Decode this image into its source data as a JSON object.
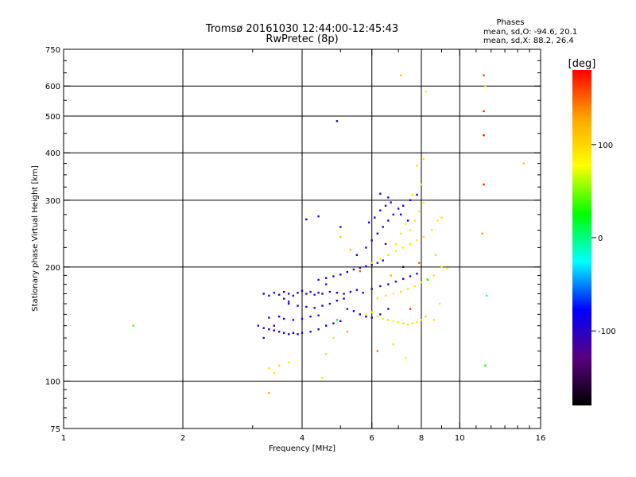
{
  "header": {
    "title_line1": "Tromsø 20161030 12:44:00-12:45:43",
    "title_line2": "RwPretec (8p)",
    "stats_title": "Phases",
    "stats_o": "mean, sd,O: -94.6, 20.1",
    "stats_x": "mean, sd,X:  88.2, 26.4"
  },
  "colorbar": {
    "label": "[deg]",
    "ticks": [
      {
        "label": "100",
        "value": 100
      },
      {
        "label": "0",
        "value": 0
      },
      {
        "label": "-100",
        "value": -100
      }
    ],
    "range": [
      -180,
      180
    ],
    "colors": [
      "#ff0000",
      "#ffa500",
      "#ffff00",
      "#00ff00",
      "#00ffff",
      "#0000ff",
      "#5a0080",
      "#000000"
    ]
  },
  "chart_data": {
    "type": "scatter",
    "xlabel": "Frequency [MHz]",
    "ylabel": "Stationary phase Virtual Height [km]",
    "x_scale": "log",
    "y_scale": "log",
    "xlim": [
      1,
      16
    ],
    "ylim": [
      75,
      750
    ],
    "x_ticks": [
      {
        "label": "1",
        "value": 1
      },
      {
        "label": "2",
        "value": 2
      },
      {
        "label": "4",
        "value": 4
      },
      {
        "label": "6",
        "value": 6
      },
      {
        "label": "8",
        "value": 8
      },
      {
        "label": "10",
        "value": 10
      },
      {
        "label": "16",
        "value": 16
      }
    ],
    "y_ticks": [
      {
        "label": "75",
        "value": 75
      },
      {
        "label": "100",
        "value": 100
      },
      {
        "label": "200",
        "value": 200
      },
      {
        "label": "300",
        "value": 300
      },
      {
        "label": "400",
        "value": 400
      },
      {
        "label": "500",
        "value": 500
      },
      {
        "label": "600",
        "value": 600
      },
      {
        "label": "750",
        "value": 750
      }
    ],
    "x_grid": [
      2,
      4,
      6,
      8,
      10
    ],
    "y_grid": [
      100,
      200,
      300,
      400,
      500,
      600
    ],
    "grid": true,
    "series": [
      {
        "points": [
          [
            3.2,
            170,
            -95
          ],
          [
            3.3,
            168,
            -100
          ],
          [
            3.4,
            171,
            -92
          ],
          [
            3.5,
            169,
            -98
          ],
          [
            3.6,
            172,
            -90
          ],
          [
            3.7,
            170,
            -96
          ],
          [
            3.8,
            168,
            -101
          ],
          [
            3.9,
            171,
            -94
          ],
          [
            4.0,
            173,
            -88
          ],
          [
            4.1,
            170,
            -97
          ],
          [
            4.2,
            172,
            -93
          ],
          [
            4.3,
            169,
            -99
          ],
          [
            4.4,
            171,
            -95
          ],
          [
            4.5,
            170,
            -91
          ],
          [
            4.7,
            172,
            -96
          ],
          [
            4.9,
            171,
            -94
          ],
          [
            5.1,
            170,
            -98
          ],
          [
            5.3,
            172,
            -92
          ],
          [
            5.5,
            174,
            -90
          ],
          [
            5.7,
            171,
            -95
          ],
          [
            3.1,
            140,
            -100
          ],
          [
            3.2,
            138,
            -96
          ],
          [
            3.3,
            137,
            -102
          ],
          [
            3.4,
            136,
            -94
          ],
          [
            3.5,
            135,
            -98
          ],
          [
            3.6,
            134,
            -99
          ],
          [
            3.7,
            133,
            -95
          ],
          [
            3.8,
            134,
            -97
          ],
          [
            3.9,
            133,
            -101
          ],
          [
            4.0,
            134,
            -93
          ],
          [
            4.2,
            135,
            -96
          ],
          [
            4.4,
            137,
            -98
          ],
          [
            4.6,
            140,
            -95
          ],
          [
            4.8,
            142,
            -97
          ],
          [
            5.0,
            144,
            -93
          ],
          [
            3.7,
            160,
            -96
          ],
          [
            3.9,
            158,
            -99
          ],
          [
            4.1,
            157,
            -93
          ],
          [
            4.3,
            156,
            -98
          ],
          [
            4.5,
            158,
            -95
          ],
          [
            4.7,
            160,
            -97
          ],
          [
            4.9,
            163,
            -94
          ],
          [
            5.1,
            165,
            -96
          ],
          [
            3.3,
            147,
            -98
          ],
          [
            3.5,
            148,
            -94
          ],
          [
            3.6,
            146,
            -99
          ],
          [
            3.8,
            145,
            -95
          ],
          [
            4.0,
            146,
            -97
          ],
          [
            4.2,
            148,
            -93
          ],
          [
            4.4,
            149,
            -100
          ],
          [
            4.4,
            185,
            -95
          ],
          [
            4.6,
            187,
            -98
          ],
          [
            4.8,
            189,
            -92
          ],
          [
            5.0,
            191,
            -96
          ],
          [
            5.2,
            194,
            -94
          ],
          [
            5.4,
            197,
            -99
          ],
          [
            5.6,
            199,
            -95
          ],
          [
            5.8,
            201,
            -93
          ],
          [
            6.0,
            203,
            -97
          ],
          [
            6.2,
            205,
            -94
          ],
          [
            6.4,
            208,
            -96
          ],
          [
            5.5,
            215,
            -96
          ],
          [
            5.8,
            225,
            -93
          ],
          [
            6.0,
            235,
            -98
          ],
          [
            6.2,
            245,
            -95
          ],
          [
            6.4,
            255,
            -97
          ],
          [
            6.6,
            265,
            -94
          ],
          [
            6.8,
            275,
            -99
          ],
          [
            7.0,
            285,
            -95
          ],
          [
            7.2,
            290,
            -97
          ],
          [
            7.5,
            300,
            -93
          ],
          [
            7.8,
            310,
            -96
          ],
          [
            5.9,
            262,
            -95
          ],
          [
            6.1,
            270,
            -98
          ],
          [
            6.3,
            282,
            -94
          ],
          [
            6.5,
            290,
            -97
          ],
          [
            6.7,
            296,
            -93
          ],
          [
            6.3,
            312,
            -96
          ],
          [
            6.6,
            305,
            -98
          ],
          [
            7.1,
            275,
            -95
          ],
          [
            7.4,
            265,
            -92
          ],
          [
            6.0,
            175,
            -94
          ],
          [
            6.3,
            178,
            -98
          ],
          [
            6.6,
            180,
            -95
          ],
          [
            6.9,
            183,
            -97
          ],
          [
            7.2,
            186,
            -93
          ],
          [
            7.5,
            189,
            -96
          ],
          [
            7.8,
            192,
            -99
          ],
          [
            5.2,
            155,
            -96
          ],
          [
            5.4,
            153,
            -93
          ],
          [
            5.6,
            150,
            -98
          ],
          [
            5.8,
            148,
            -95
          ],
          [
            6.0,
            147,
            -97
          ],
          [
            6.3,
            150,
            -94
          ],
          [
            6.6,
            155,
            -96
          ],
          [
            4.1,
            267,
            -95
          ],
          [
            5.0,
            255,
            -98
          ],
          [
            4.4,
            272,
            -96
          ],
          [
            3.4,
            140,
            -140
          ],
          [
            3.6,
            165,
            -130
          ],
          [
            4.6,
            180,
            -125
          ],
          [
            6.5,
            230,
            -135
          ],
          [
            7.2,
            200,
            -150
          ],
          [
            3.2,
            130,
            -110
          ],
          [
            3.7,
            162,
            -88
          ],
          [
            4.9,
            485,
            -88
          ]
        ]
      },
      {
        "points": [
          [
            5.8,
            150,
            90
          ],
          [
            6.0,
            152,
            85
          ],
          [
            6.2,
            148,
            95
          ],
          [
            6.4,
            146,
            88
          ],
          [
            6.6,
            145,
            92
          ],
          [
            6.8,
            144,
            86
          ],
          [
            7.0,
            143,
            90
          ],
          [
            7.2,
            142,
            94
          ],
          [
            7.4,
            141,
            88
          ],
          [
            7.6,
            142,
            92
          ],
          [
            7.8,
            143,
            86
          ],
          [
            8.0,
            145,
            90
          ],
          [
            8.2,
            148,
            95
          ],
          [
            6.2,
            165,
            88
          ],
          [
            6.5,
            168,
            92
          ],
          [
            6.8,
            170,
            86
          ],
          [
            7.1,
            172,
            94
          ],
          [
            7.4,
            175,
            90
          ],
          [
            7.7,
            178,
            87
          ],
          [
            8.0,
            182,
            92
          ],
          [
            8.3,
            186,
            88
          ],
          [
            8.6,
            190,
            95
          ],
          [
            6.9,
            230,
            90
          ],
          [
            7.1,
            245,
            86
          ],
          [
            7.3,
            260,
            92
          ],
          [
            7.5,
            250,
            88
          ],
          [
            7.7,
            265,
            94
          ],
          [
            7.9,
            280,
            90
          ],
          [
            8.1,
            295,
            86
          ],
          [
            7.6,
            310,
            92
          ],
          [
            8.0,
            330,
            88
          ],
          [
            7.8,
            370,
            94
          ],
          [
            8.1,
            385,
            90
          ],
          [
            6.0,
            205,
            92
          ],
          [
            6.3,
            210,
            88
          ],
          [
            6.6,
            215,
            95
          ],
          [
            6.9,
            220,
            86
          ],
          [
            7.2,
            225,
            90
          ],
          [
            7.5,
            230,
            94
          ],
          [
            7.8,
            235,
            88
          ],
          [
            8.1,
            240,
            92
          ],
          [
            8.5,
            250,
            90
          ],
          [
            8.8,
            265,
            85
          ],
          [
            9.0,
            270,
            92
          ],
          [
            8.7,
            215,
            95
          ],
          [
            9.0,
            200,
            88
          ],
          [
            9.3,
            198,
            90
          ],
          [
            8.9,
            160,
            86
          ],
          [
            8.6,
            145,
            92
          ],
          [
            3.3,
            108,
            90
          ],
          [
            3.5,
            110,
            95
          ],
          [
            3.7,
            112,
            85
          ],
          [
            3.4,
            105,
            92
          ],
          [
            4.5,
            102,
            88
          ],
          [
            3.3,
            93,
            130
          ],
          [
            4.6,
            118,
            95
          ],
          [
            4.8,
            130,
            70
          ],
          [
            5.2,
            135,
            120
          ],
          [
            6.8,
            125,
            95
          ],
          [
            7.3,
            115,
            85
          ],
          [
            6.2,
            120,
            140
          ],
          [
            7.1,
            640,
            110
          ],
          [
            8.2,
            580,
            90
          ],
          [
            11.5,
            640,
            160
          ],
          [
            11.6,
            600,
            100
          ],
          [
            11.5,
            515,
            170
          ],
          [
            11.5,
            445,
            180
          ],
          [
            11.5,
            330,
            175
          ],
          [
            11.4,
            245,
            130
          ],
          [
            14.5,
            375,
            110
          ],
          [
            11.6,
            110,
            30
          ],
          [
            11.7,
            168,
            -20
          ],
          [
            1.5,
            140,
            40
          ],
          [
            5.0,
            240,
            60
          ],
          [
            5.3,
            222,
            110
          ],
          [
            5.6,
            195,
            150
          ],
          [
            7.5,
            155,
            170
          ],
          [
            8.3,
            185,
            30
          ],
          [
            4.9,
            145,
            10
          ],
          [
            6.7,
            190,
            120
          ],
          [
            7.9,
            205,
            155
          ]
        ]
      }
    ]
  }
}
